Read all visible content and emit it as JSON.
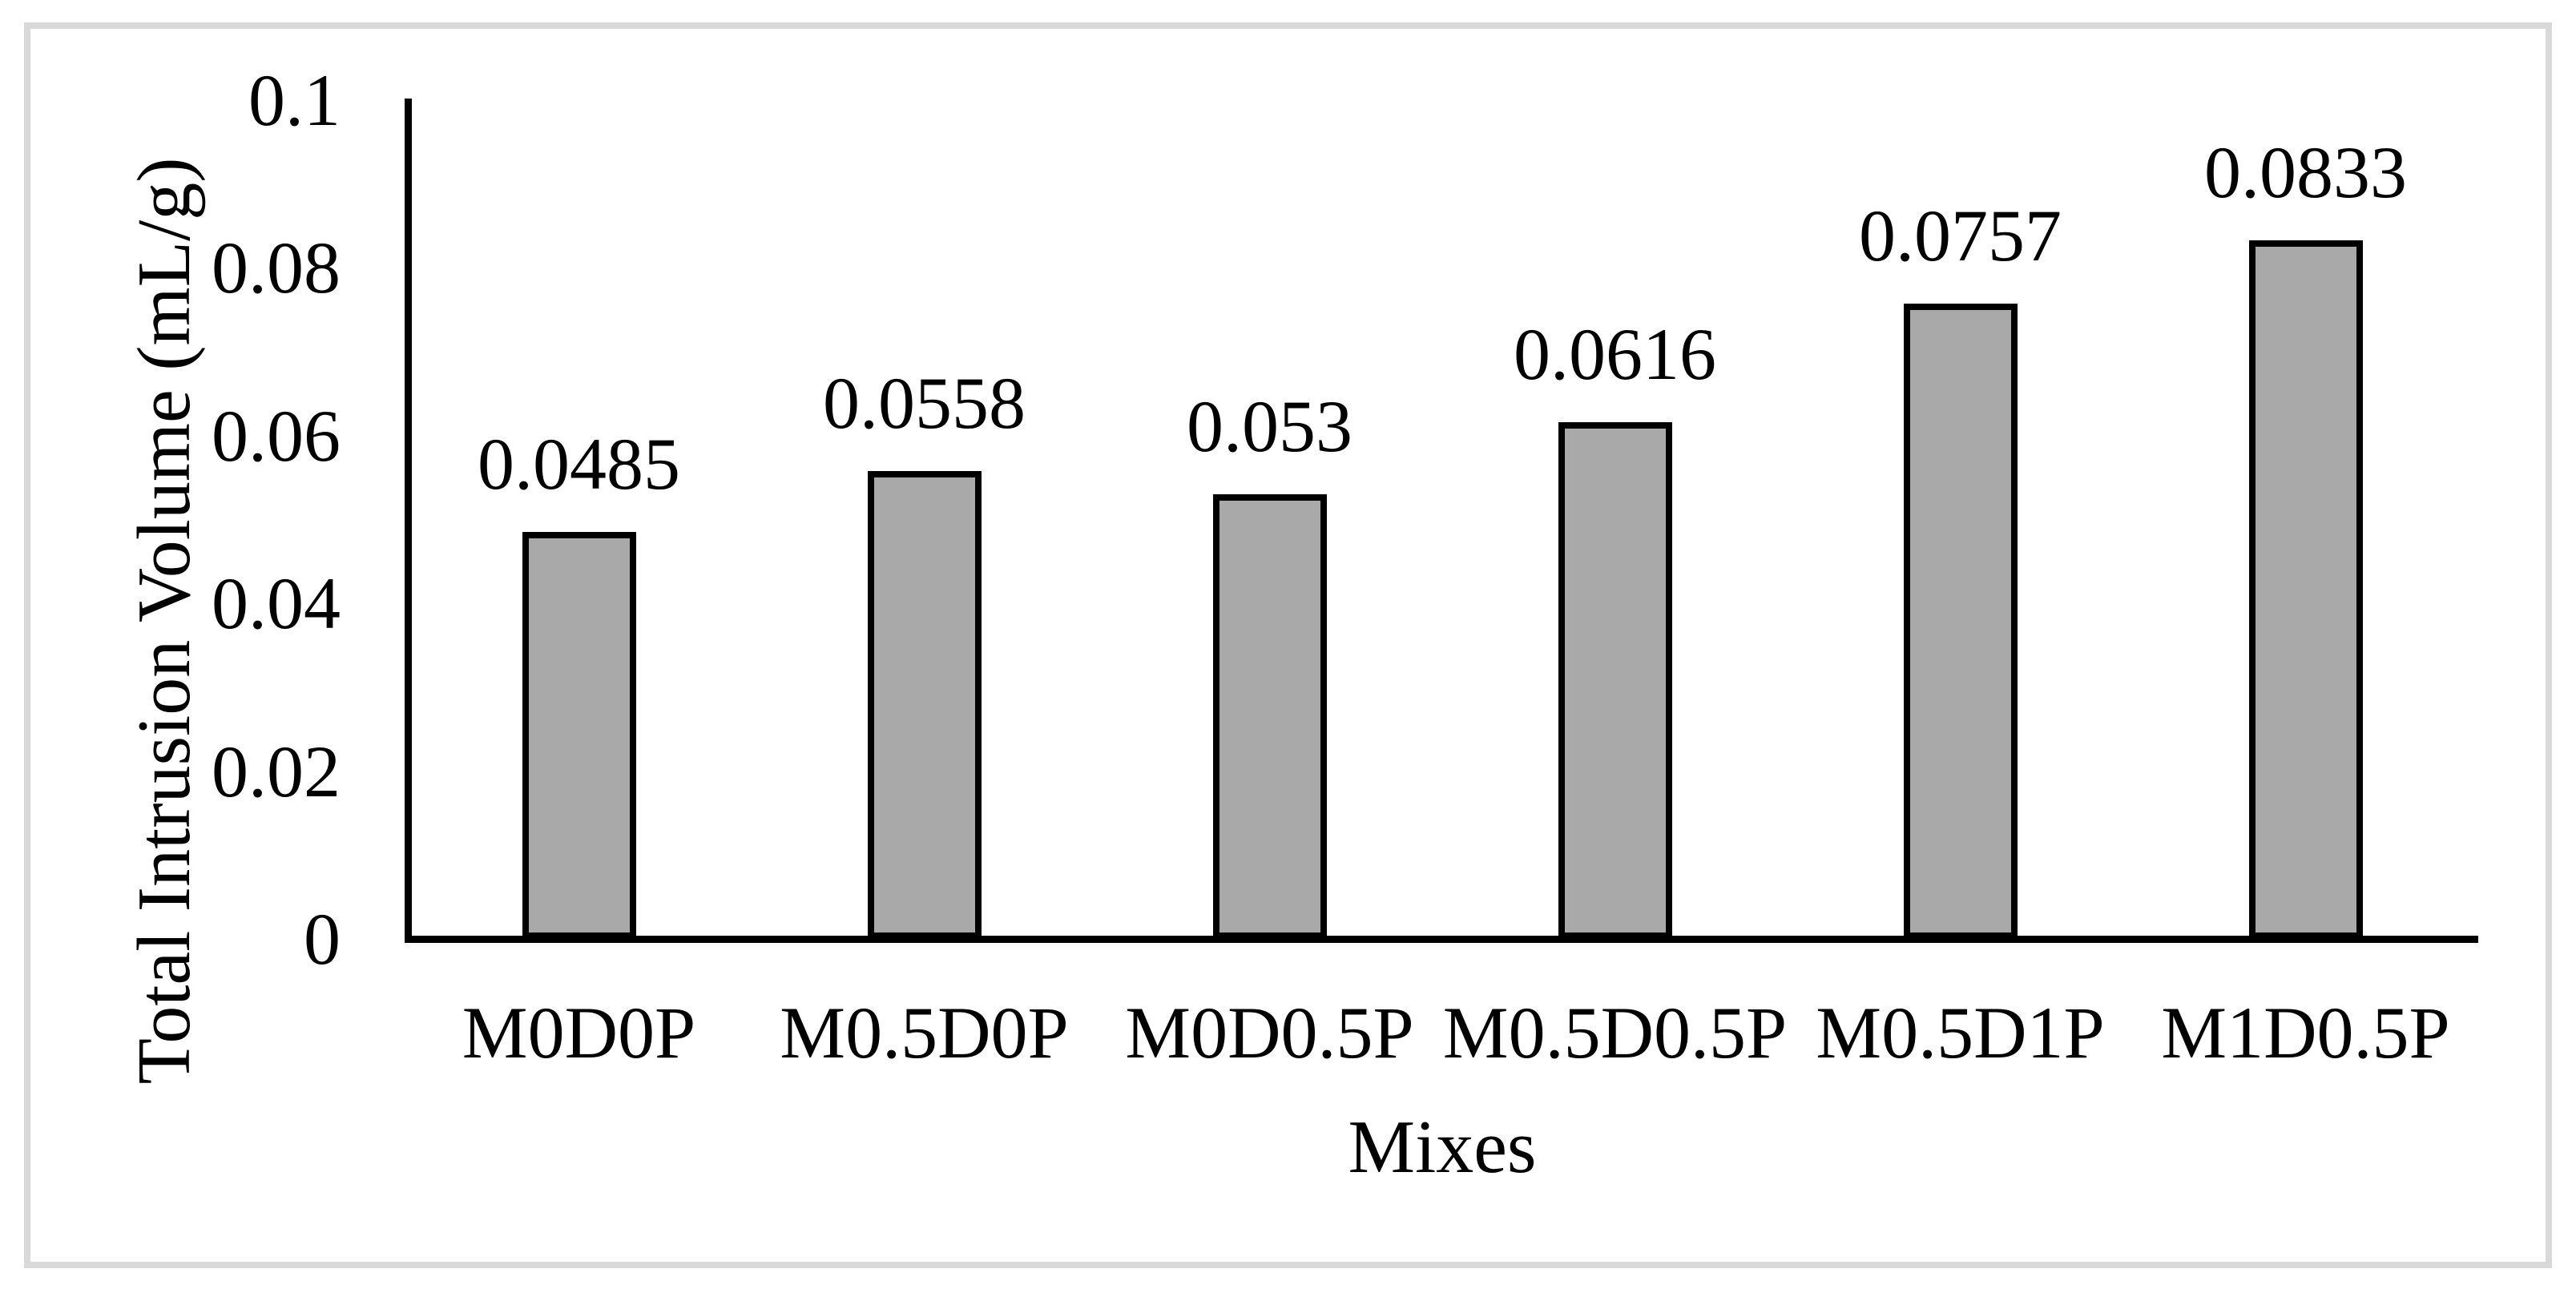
{
  "chart_data": {
    "type": "bar",
    "title": "",
    "xlabel": "Mixes",
    "ylabel": "Total Intrusion Volume (mL/g)",
    "categories": [
      "M0D0P",
      "M0.5D0P",
      "M0D0.5P",
      "M0.5D0.5P",
      "M0.5D1P",
      "M1D0.5P"
    ],
    "values": [
      0.0485,
      0.0558,
      0.053,
      0.0616,
      0.0757,
      0.0833
    ],
    "bar_labels": [
      "0.0485",
      "0.0558",
      "0.053",
      "0.0616",
      "0.0757",
      "0.0833"
    ],
    "ylim": [
      0,
      0.1
    ],
    "yticks": [
      0,
      0.02,
      0.04,
      0.06,
      0.08,
      0.1
    ],
    "ytick_labels": [
      "0",
      "0.02",
      "0.04",
      "0.06",
      "0.08",
      "0.1"
    ],
    "grid": false,
    "legend_position": "none",
    "colors": {
      "bar_fill": "#A9A9A9",
      "bar_border": "#000000",
      "axis_line": "#000000",
      "text": "#000000",
      "figure_border": "#D9D9D9",
      "background": "#FFFFFF"
    }
  }
}
